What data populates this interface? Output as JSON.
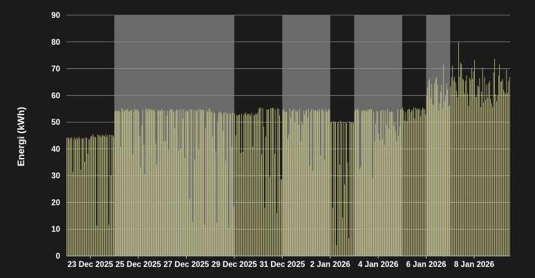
{
  "chart_data": {
    "type": "bar",
    "ylabel": "Energi (kWh)",
    "ylim": [
      0,
      90
    ],
    "yticks": [
      0,
      10,
      20,
      30,
      40,
      50,
      60,
      70,
      80,
      90
    ],
    "x_range": [
      "2025-12-22 00:00",
      "2026-01-09 12:00"
    ],
    "xtick_labels": [
      "23 Dec 2025",
      "25 Dec 2025",
      "27 Dec 2025",
      "29 Dec 2025",
      "31 Dec 2025",
      "2 Jan 2026",
      "4 Jan 2026",
      "6 Jan 2026",
      "8 Jan 2026"
    ],
    "xtick_dates": [
      "2025-12-23",
      "2025-12-25",
      "2025-12-27",
      "2025-12-29",
      "2025-12-31",
      "2026-01-02",
      "2026-01-04",
      "2026-01-06",
      "2026-01-08"
    ],
    "grid": true,
    "shaded_periods": [
      [
        "2025-12-24 00:00",
        "2025-12-29 00:00"
      ],
      [
        "2025-12-31 00:00",
        "2026-01-02 00:00"
      ],
      [
        "2026-01-03 00:00",
        "2026-01-05 00:00"
      ],
      [
        "2026-01-06 00:00",
        "2026-01-07 00:00"
      ]
    ],
    "bar_interval_hours": 1,
    "colors": {
      "bars": "#d8d890",
      "shade": "#6b6b6b",
      "background": "#1b1b1b"
    },
    "days": [
      {
        "date": "2025-12-22",
        "level": 44,
        "dip": 30
      },
      {
        "date": "2025-12-23",
        "level": 45,
        "dip": 10
      },
      {
        "date": "2025-12-24",
        "level": 54.5,
        "dip": 36
      },
      {
        "date": "2025-12-25",
        "level": 54.5,
        "dip": 30
      },
      {
        "date": "2025-12-26",
        "level": 54.5,
        "dip": 35
      },
      {
        "date": "2025-12-27",
        "level": 54.5,
        "dip": 10
      },
      {
        "date": "2025-12-28",
        "level": 53.5,
        "dip": 10
      },
      {
        "date": "2025-12-29",
        "level": 53,
        "dip": 38
      },
      {
        "date": "2025-12-30",
        "level": 55,
        "dip": 13
      },
      {
        "date": "2025-12-31",
        "level": 54.5,
        "dip": 42
      },
      {
        "date": "2026-01-01",
        "level": 54.5,
        "dip": 30
      },
      {
        "date": "2026-01-02",
        "level": 50,
        "dip": 1
      },
      {
        "date": "2026-01-03",
        "level": 54.5,
        "dip": 29
      },
      {
        "date": "2026-01-04",
        "level": 54.5,
        "dip": 40
      },
      {
        "date": "2026-01-05",
        "level": 55,
        "dip": 50
      },
      {
        "date": "2026-01-06",
        "level": 61,
        "dip": 54
      },
      {
        "date": "2026-01-07",
        "level": 66,
        "dip": 56
      },
      {
        "date": "2026-01-08",
        "level": 63,
        "dip": 55
      },
      {
        "date": "2026-01-09",
        "level": 66,
        "dip": 56
      }
    ]
  }
}
